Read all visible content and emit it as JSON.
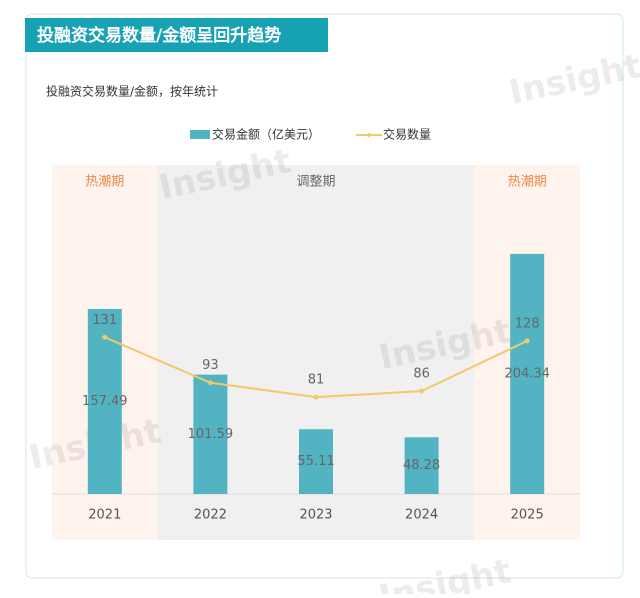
{
  "chart_data": {
    "type": "bar-line",
    "title": "投融资交易数量/金额呈回升趋势",
    "subtitle": "投融资交易数量/金额，按年统计",
    "watermark": "Insight",
    "categories": [
      "2021",
      "2022",
      "2023",
      "2024",
      "2025"
    ],
    "series": [
      {
        "name": "交易金额（亿美元）",
        "type": "bar",
        "color": "#52b3c2",
        "values": [
          157.49,
          101.59,
          55.11,
          48.28,
          204.34
        ]
      },
      {
        "name": "交易数量",
        "type": "line",
        "axis": "y2",
        "color": "#f2c96a",
        "values": [
          131,
          93,
          81,
          86,
          128
        ]
      }
    ],
    "periods": [
      {
        "label": "热潮期",
        "categories": [
          "2021"
        ],
        "color": "#fff3ee",
        "label_color": "#e8894a"
      },
      {
        "label": "调整期",
        "categories": [
          "2022",
          "2023",
          "2024"
        ],
        "color": "#f0f0f0",
        "label_color": "#666666"
      },
      {
        "label": "热潮期",
        "categories": [
          "2025"
        ],
        "color": "#fff3ee",
        "label_color": "#e8894a"
      }
    ],
    "ylim": [
      0,
      280
    ],
    "y2lim": [
      0,
      275
    ]
  }
}
